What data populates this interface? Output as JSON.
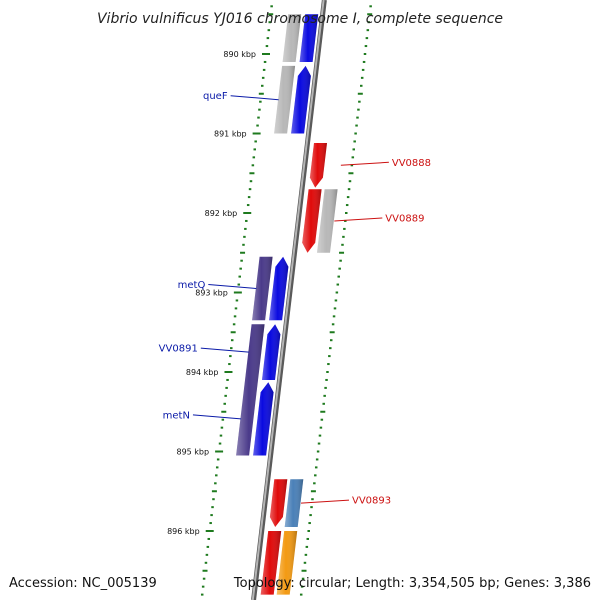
{
  "title": "Vibrio vulnificus YJ016 chromosome I, complete sequence",
  "accession": "Accession: NC_005139",
  "topology": "Topology: circular; Length: 3,354,505 bp; Genes: 3,386",
  "colors": {
    "backbone": "#8c8c8c",
    "tick": "#1e7a1e",
    "plus_label": "#0a1aa8",
    "minus_label": "#cc1111",
    "gene_blue": "#0a0ae0",
    "gene_gray": "#b8b8b8",
    "gene_purple": "#4a3a8a",
    "gene_red": "#e00a0a",
    "gene_steel": "#4a80b8",
    "gene_orange": "#f39a12"
  },
  "ticks": [
    {
      "kbp": 890,
      "label": "890 kbp"
    },
    {
      "kbp": 891,
      "label": "891 kbp"
    },
    {
      "kbp": 892,
      "label": "892 kbp"
    },
    {
      "kbp": 893,
      "label": "893 kbp"
    },
    {
      "kbp": 894,
      "label": "894 kbp"
    },
    {
      "kbp": 895,
      "label": "895 kbp"
    },
    {
      "kbp": 896,
      "label": "896 kbp"
    }
  ],
  "genes": [
    {
      "strand": "plus",
      "track": "outer",
      "start": 889.5,
      "end": 890.1,
      "color": "gene_blue",
      "arrow": false
    },
    {
      "strand": "plus",
      "track": "inner",
      "start": 889.5,
      "end": 890.1,
      "color": "gene_gray",
      "arrow": false
    },
    {
      "strand": "plus",
      "track": "outer",
      "start": 890.15,
      "end": 891.0,
      "color": "gene_blue",
      "arrow": true,
      "label": "queF"
    },
    {
      "strand": "plus",
      "track": "inner",
      "start": 890.15,
      "end": 891.0,
      "color": "gene_gray",
      "arrow": false
    },
    {
      "strand": "minus",
      "track": "inner",
      "start": 891.12,
      "end": 891.68,
      "color": "gene_red",
      "arrow": true,
      "label": "VV0888"
    },
    {
      "strand": "minus",
      "track": "inner",
      "start": 891.7,
      "end": 892.5,
      "color": "gene_red",
      "arrow": true,
      "label": "VV0889"
    },
    {
      "strand": "minus",
      "track": "outer",
      "start": 891.7,
      "end": 892.5,
      "color": "gene_gray",
      "arrow": false
    },
    {
      "strand": "plus",
      "track": "outer",
      "start": 892.55,
      "end": 893.35,
      "color": "gene_blue",
      "arrow": true,
      "label": "metQ"
    },
    {
      "strand": "plus",
      "track": "inner",
      "start": 892.55,
      "end": 893.35,
      "color": "gene_purple",
      "arrow": false
    },
    {
      "strand": "plus",
      "track": "outer",
      "start": 893.4,
      "end": 894.1,
      "color": "gene_blue",
      "arrow": true,
      "label": "VV0891"
    },
    {
      "strand": "plus",
      "track": "outer",
      "start": 894.13,
      "end": 895.05,
      "color": "gene_blue",
      "arrow": true,
      "label": "metN"
    },
    {
      "strand": "plus",
      "track": "inner",
      "start": 893.4,
      "end": 895.05,
      "color": "gene_purple",
      "arrow": false
    },
    {
      "strand": "minus",
      "track": "inner",
      "start": 895.35,
      "end": 895.95,
      "color": "gene_red",
      "arrow": true,
      "label": "VV0893"
    },
    {
      "strand": "minus",
      "track": "outer",
      "start": 895.35,
      "end": 895.95,
      "color": "gene_steel",
      "arrow": false
    },
    {
      "strand": "minus",
      "track": "inner",
      "start": 896.0,
      "end": 896.8,
      "color": "gene_red",
      "arrow": false
    },
    {
      "strand": "minus",
      "track": "outer",
      "start": 896.0,
      "end": 896.8,
      "color": "gene_orange",
      "arrow": false
    }
  ]
}
